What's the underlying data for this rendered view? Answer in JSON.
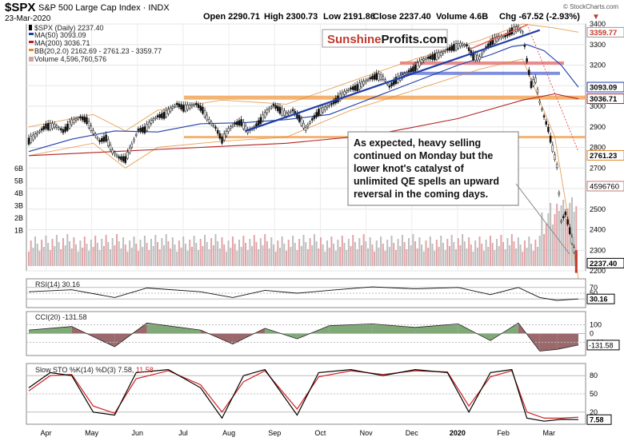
{
  "header": {
    "symbol": "$SPX",
    "name": "S&P 500 Large Cap Index",
    "exchange": "INDX",
    "date": "23-Mar-2020",
    "open": "Open 2290.71",
    "high": "High 2300.73",
    "low": "Low 2191.86",
    "close": "Close 2237.40",
    "volume": "Volume 4.6B",
    "chg": "Chg -67.52 (-2.93%)",
    "chg_arrow": "▼",
    "credit": "© StockCharts.com"
  },
  "legend": {
    "spx": "$SPX (Daily) 2237.40",
    "ma50": "MA(50) 3093.09",
    "ma200": "MA(200) 3036.71",
    "bb": "BB(20,2.0) 2162.69 - 2761.23 - 3359.77",
    "volume": "Volume 4,596,760,576"
  },
  "brand": {
    "part1": "Sunshine",
    "part2": "Profits.com"
  },
  "annotation": [
    "As expected, heavy selling",
    "continued on Monday but the",
    "lower knot's catalyst of",
    "unlimited QE spells an upward",
    "reversal in the coming days."
  ],
  "price_badges": [
    {
      "label": "3359.77",
      "value": 3359.77,
      "bg": "#ffffff",
      "fg": "#c0392b",
      "border": "#999999"
    },
    {
      "label": "3093.09",
      "value": 3093.09,
      "bg": "#ffffff",
      "fg": "#000000",
      "border": "#1f3fa8"
    },
    {
      "label": "3036.71",
      "value": 3036.71,
      "bg": "#ffffff",
      "fg": "#000000",
      "border": "#b22222"
    },
    {
      "label": "2761.23",
      "value": 2761.23,
      "bg": "#ffffff",
      "fg": "#000000",
      "border": "#e08a2c"
    },
    {
      "label": "2237.40",
      "value": 2237.4,
      "bg": "#ffffff",
      "fg": "#000000",
      "border": "#000000"
    }
  ],
  "vol_badge": "4596760",
  "months": [
    "Apr",
    "May",
    "Jun",
    "Jul",
    "Aug",
    "Sep",
    "Oct",
    "Nov",
    "Dec",
    "2020",
    "Feb",
    "Mar"
  ],
  "rsi": {
    "label": "RSI(14) 30.16",
    "ticks": [
      "70",
      "50",
      "30"
    ],
    "badge": "30.16"
  },
  "cci": {
    "label": "CCI(20) -131.58",
    "ticks": [
      "100",
      "0",
      "-100"
    ],
    "badge": "-131.58"
  },
  "sto": {
    "label": "Slow STO %K(14) %D(3) 7.58,",
    "label_d": "11.58",
    "ticks": [
      "80",
      "50",
      "20"
    ],
    "badge": "7.58"
  },
  "colors": {
    "ma50": "#1f3fa8",
    "ma200": "#b22222",
    "bb": "#e08a2c",
    "trend": "#1f3fa8",
    "support": "#f0a050",
    "resistance": "#e05a5a",
    "brand_red": "#c0392b",
    "brand_black": "#111111",
    "cci_pos": "#6b9a5f",
    "cci_neg": "#8a4f52",
    "sto_k": "#000000",
    "sto_d": "#d02020"
  },
  "chart_data": {
    "type": "candlestick",
    "symbol": "$SPX",
    "x_months": [
      "Apr",
      "May",
      "Jun",
      "Jul",
      "Aug",
      "Sep",
      "Oct",
      "Nov",
      "Dec",
      "2020",
      "Feb",
      "Mar"
    ],
    "ylim": [
      2200,
      3400
    ],
    "y_ticks": [
      2200,
      2300,
      2400,
      2500,
      2600,
      2700,
      2800,
      2900,
      3000,
      3100,
      3200,
      3300,
      3400
    ],
    "volume_ticks": [
      "6B",
      "5B",
      "4B",
      "3B",
      "2B",
      "1B"
    ],
    "close_path": [
      [
        0,
        2835
      ],
      [
        4,
        2867
      ],
      [
        8,
        2905
      ],
      [
        12,
        2907
      ],
      [
        16,
        2880
      ],
      [
        20,
        2925
      ],
      [
        24,
        2945
      ],
      [
        27,
        2935
      ],
      [
        30,
        2875
      ],
      [
        33,
        2830
      ],
      [
        36,
        2850
      ],
      [
        39,
        2780
      ],
      [
        42,
        2750
      ],
      [
        45,
        2745
      ],
      [
        48,
        2810
      ],
      [
        51,
        2885
      ],
      [
        54,
        2890
      ],
      [
        57,
        2925
      ],
      [
        60,
        2950
      ],
      [
        63,
        2960
      ],
      [
        66,
        2985
      ],
      [
        69,
        3010
      ],
      [
        72,
        2995
      ],
      [
        75,
        3000
      ],
      [
        78,
        3010
      ],
      [
        81,
        2985
      ],
      [
        84,
        2930
      ],
      [
        87,
        2895
      ],
      [
        90,
        2840
      ],
      [
        93,
        2885
      ],
      [
        96,
        2915
      ],
      [
        99,
        2925
      ],
      [
        102,
        2880
      ],
      [
        105,
        2895
      ],
      [
        108,
        2935
      ],
      [
        111,
        2975
      ],
      [
        114,
        3005
      ],
      [
        117,
        2985
      ],
      [
        120,
        2960
      ],
      [
        123,
        2980
      ],
      [
        126,
        2945
      ],
      [
        129,
        2890
      ],
      [
        132,
        2935
      ],
      [
        135,
        2975
      ],
      [
        138,
        2990
      ],
      [
        141,
        3010
      ],
      [
        144,
        3040
      ],
      [
        147,
        3065
      ],
      [
        150,
        3085
      ],
      [
        153,
        3095
      ],
      [
        156,
        3115
      ],
      [
        159,
        3135
      ],
      [
        162,
        3150
      ],
      [
        165,
        3140
      ],
      [
        168,
        3095
      ],
      [
        171,
        3130
      ],
      [
        174,
        3145
      ],
      [
        177,
        3170
      ],
      [
        180,
        3190
      ],
      [
        183,
        3220
      ],
      [
        186,
        3235
      ],
      [
        189,
        3245
      ],
      [
        192,
        3255
      ],
      [
        195,
        3275
      ],
      [
        198,
        3290
      ],
      [
        201,
        3300
      ],
      [
        204,
        3295
      ],
      [
        207,
        3245
      ],
      [
        210,
        3235
      ],
      [
        213,
        3285
      ],
      [
        216,
        3320
      ],
      [
        219,
        3335
      ],
      [
        222,
        3340
      ],
      [
        225,
        3370
      ],
      [
        228,
        3380
      ],
      [
        230,
        3360
      ],
      [
        232,
        3225
      ],
      [
        234,
        3110
      ],
      [
        236,
        3130
      ],
      [
        238,
        3020
      ],
      [
        240,
        2950
      ],
      [
        242,
        2890
      ],
      [
        244,
        2800
      ],
      [
        246,
        2710
      ],
      [
        248,
        2440
      ],
      [
        250,
        2480
      ],
      [
        252,
        2400
      ],
      [
        254,
        2305
      ],
      [
        256,
        2237
      ]
    ],
    "ma50_path": [
      [
        0,
        2780
      ],
      [
        20,
        2840
      ],
      [
        40,
        2880
      ],
      [
        60,
        2875
      ],
      [
        80,
        2915
      ],
      [
        100,
        2920
      ],
      [
        120,
        2935
      ],
      [
        140,
        2960
      ],
      [
        160,
        3040
      ],
      [
        180,
        3120
      ],
      [
        200,
        3200
      ],
      [
        215,
        3250
      ],
      [
        225,
        3290
      ],
      [
        232,
        3300
      ],
      [
        240,
        3270
      ],
      [
        248,
        3200
      ],
      [
        256,
        3093
      ]
    ],
    "ma200_path": [
      [
        0,
        2760
      ],
      [
        40,
        2780
      ],
      [
        80,
        2800
      ],
      [
        120,
        2820
      ],
      [
        160,
        2860
      ],
      [
        200,
        2940
      ],
      [
        230,
        3030
      ],
      [
        245,
        3060
      ],
      [
        256,
        3036
      ]
    ],
    "bb_upper": [
      [
        0,
        2900
      ],
      [
        30,
        2960
      ],
      [
        45,
        2880
      ],
      [
        60,
        2980
      ],
      [
        90,
        3030
      ],
      [
        120,
        3010
      ],
      [
        150,
        3120
      ],
      [
        180,
        3230
      ],
      [
        210,
        3320
      ],
      [
        230,
        3400
      ],
      [
        245,
        3380
      ],
      [
        256,
        3360
      ]
    ],
    "bb_lower": [
      [
        0,
        2760
      ],
      [
        30,
        2820
      ],
      [
        45,
        2700
      ],
      [
        60,
        2800
      ],
      [
        90,
        2830
      ],
      [
        120,
        2850
      ],
      [
        150,
        2980
      ],
      [
        180,
        3080
      ],
      [
        210,
        3180
      ],
      [
        230,
        3230
      ],
      [
        245,
        2850
      ],
      [
        256,
        2163
      ]
    ],
    "rsi_path": [
      [
        0,
        55
      ],
      [
        20,
        62
      ],
      [
        40,
        35
      ],
      [
        55,
        68
      ],
      [
        80,
        55
      ],
      [
        95,
        35
      ],
      [
        110,
        60
      ],
      [
        125,
        50
      ],
      [
        140,
        60
      ],
      [
        160,
        72
      ],
      [
        180,
        65
      ],
      [
        200,
        70
      ],
      [
        215,
        45
      ],
      [
        228,
        70
      ],
      [
        238,
        35
      ],
      [
        246,
        25
      ],
      [
        256,
        30
      ]
    ],
    "cci_path": [
      [
        0,
        40
      ],
      [
        20,
        80
      ],
      [
        40,
        -150
      ],
      [
        55,
        120
      ],
      [
        80,
        40
      ],
      [
        95,
        -120
      ],
      [
        110,
        60
      ],
      [
        125,
        -60
      ],
      [
        140,
        90
      ],
      [
        160,
        110
      ],
      [
        180,
        70
      ],
      [
        200,
        110
      ],
      [
        215,
        -80
      ],
      [
        228,
        120
      ],
      [
        238,
        -200
      ],
      [
        246,
        -180
      ],
      [
        256,
        -131
      ]
    ],
    "sto_k_path": [
      [
        0,
        60
      ],
      [
        10,
        85
      ],
      [
        20,
        80
      ],
      [
        30,
        20
      ],
      [
        40,
        15
      ],
      [
        50,
        85
      ],
      [
        65,
        90
      ],
      [
        80,
        60
      ],
      [
        90,
        10
      ],
      [
        100,
        80
      ],
      [
        110,
        90
      ],
      [
        125,
        15
      ],
      [
        135,
        85
      ],
      [
        150,
        90
      ],
      [
        165,
        80
      ],
      [
        180,
        90
      ],
      [
        195,
        85
      ],
      [
        205,
        20
      ],
      [
        215,
        85
      ],
      [
        225,
        90
      ],
      [
        232,
        10
      ],
      [
        240,
        5
      ],
      [
        248,
        8
      ],
      [
        256,
        7.58
      ]
    ],
    "sto_d_path": [
      [
        0,
        55
      ],
      [
        10,
        80
      ],
      [
        20,
        82
      ],
      [
        30,
        30
      ],
      [
        40,
        18
      ],
      [
        50,
        75
      ],
      [
        65,
        88
      ],
      [
        80,
        65
      ],
      [
        90,
        20
      ],
      [
        100,
        70
      ],
      [
        110,
        88
      ],
      [
        125,
        25
      ],
      [
        135,
        78
      ],
      [
        150,
        88
      ],
      [
        165,
        82
      ],
      [
        180,
        88
      ],
      [
        195,
        86
      ],
      [
        205,
        30
      ],
      [
        215,
        78
      ],
      [
        225,
        88
      ],
      [
        232,
        20
      ],
      [
        240,
        10
      ],
      [
        248,
        10
      ],
      [
        256,
        11.58
      ]
    ],
    "support_levels": [
      3030,
      2850
    ],
    "resistance_levels": [
      3210,
      3160
    ]
  }
}
